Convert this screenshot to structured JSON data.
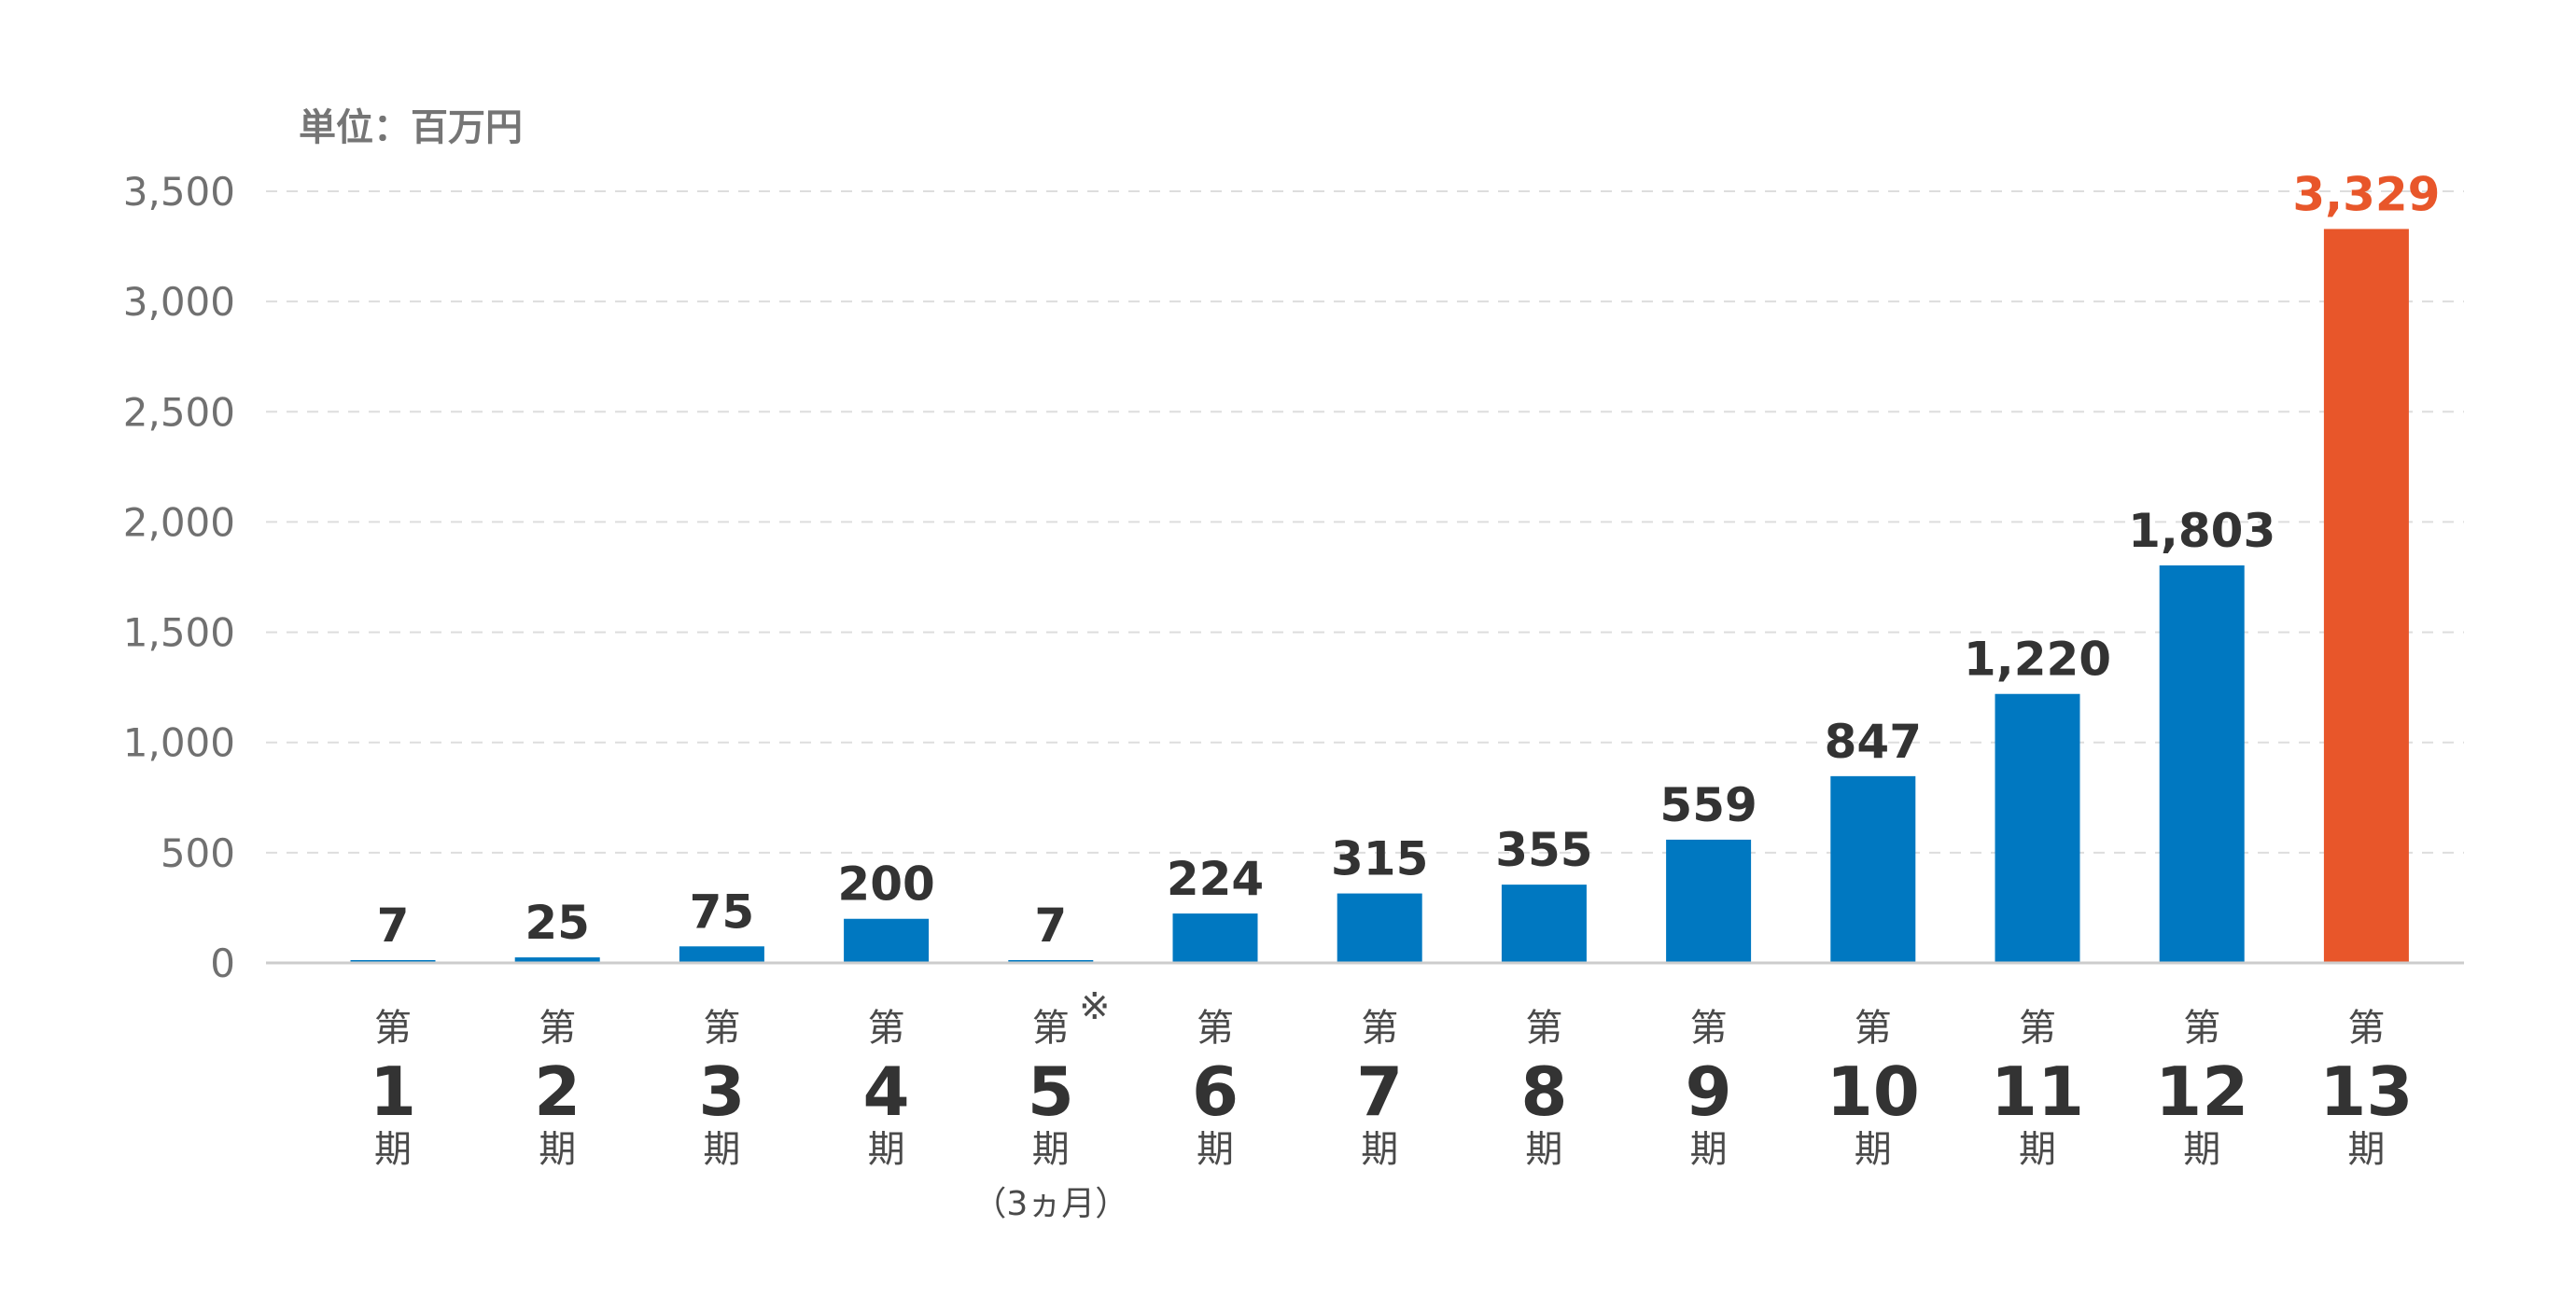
{
  "chart_data": {
    "type": "bar",
    "unit_label": "単位：百万円",
    "ylim": [
      0,
      3500
    ],
    "yticks": [
      0,
      500,
      1000,
      1500,
      2000,
      2500,
      3000,
      3500
    ],
    "ytick_labels": [
      "0",
      "500",
      "1,000",
      "1,500",
      "2,000",
      "2,500",
      "3,000",
      "3,500"
    ],
    "grid": true,
    "categories": [
      {
        "prefix": "第",
        "num": "1",
        "suffix": "期"
      },
      {
        "prefix": "第",
        "num": "2",
        "suffix": "期"
      },
      {
        "prefix": "第",
        "num": "3",
        "suffix": "期"
      },
      {
        "prefix": "第",
        "num": "4",
        "suffix": "期"
      },
      {
        "prefix": "第",
        "num": "5",
        "suffix": "期",
        "mark": "※",
        "note": "（3ヵ月）"
      },
      {
        "prefix": "第",
        "num": "6",
        "suffix": "期"
      },
      {
        "prefix": "第",
        "num": "7",
        "suffix": "期"
      },
      {
        "prefix": "第",
        "num": "8",
        "suffix": "期"
      },
      {
        "prefix": "第",
        "num": "9",
        "suffix": "期"
      },
      {
        "prefix": "第",
        "num": "10",
        "suffix": "期"
      },
      {
        "prefix": "第",
        "num": "11",
        "suffix": "期"
      },
      {
        "prefix": "第",
        "num": "12",
        "suffix": "期"
      },
      {
        "prefix": "第",
        "num": "13",
        "suffix": "期"
      }
    ],
    "values": [
      7,
      25,
      75,
      200,
      7,
      224,
      315,
      355,
      559,
      847,
      1220,
      1803,
      3329
    ],
    "value_labels": [
      "7",
      "25",
      "75",
      "200",
      "7",
      "224",
      "315",
      "355",
      "559",
      "847",
      "1,220",
      "1,803",
      "3,329"
    ],
    "highlight_index": 12,
    "colors": {
      "bar": "#0078c1",
      "highlight": "#e8562a",
      "highlight_label": "#e8562a"
    }
  }
}
